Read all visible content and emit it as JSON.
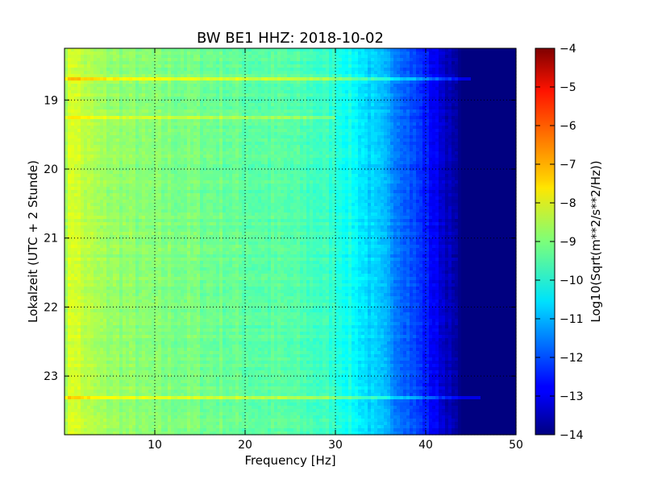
{
  "chart_data": {
    "type": "heatmap",
    "title": "BW BE1 HHZ: 2018-10-02",
    "xlabel": "Frequency [Hz]",
    "ylabel": "Lokalzeit (UTC + 2 Stunde)",
    "colorbar_label": "Log10(Sqrt(m**2/s**2/Hz))",
    "colormap": "jet",
    "grid": true,
    "xlim": [
      0,
      50
    ],
    "ylim": [
      18.25,
      23.85
    ],
    "y_inverted": true,
    "x_ticks": [
      10,
      20,
      30,
      40,
      50
    ],
    "x_tick_labels": [
      "10",
      "20",
      "30",
      "40",
      "50"
    ],
    "y_ticks": [
      19,
      20,
      21,
      22,
      23
    ],
    "y_tick_labels": [
      "19",
      "20",
      "21",
      "22",
      "23"
    ],
    "clim": [
      -14,
      -4
    ],
    "colorbar_ticks": [
      -4,
      -5,
      -6,
      -7,
      -8,
      -9,
      -10,
      -11,
      -12,
      -13,
      -14
    ],
    "colorbar_tick_labels": [
      "−4",
      "−5",
      "−6",
      "−7",
      "−8",
      "−9",
      "−10",
      "−11",
      "−12",
      "−13",
      "−14"
    ],
    "spectrum_profile": {
      "frequency_hz": [
        0,
        1,
        2,
        4,
        6,
        8,
        10,
        12,
        15,
        18,
        20,
        24,
        28,
        30,
        32,
        34,
        36,
        38,
        40,
        42,
        43,
        44,
        50
      ],
      "level": [
        -8.6,
        -8.0,
        -8.4,
        -8.7,
        -8.8,
        -8.9,
        -9.0,
        -9.0,
        -9.1,
        -9.2,
        -9.3,
        -9.4,
        -9.6,
        -9.8,
        -10.2,
        -10.7,
        -11.2,
        -11.8,
        -12.5,
        -13.2,
        -13.6,
        -14.0,
        -14.0
      ]
    },
    "bright_bands": [
      {
        "time": 18.7,
        "level_offset": 1.0,
        "max_frequency_hz": 45
      },
      {
        "time": 19.25,
        "level_offset": 0.8,
        "max_frequency_hz": 30
      },
      {
        "time": 23.3,
        "level_offset": 1.0,
        "max_frequency_hz": 46
      }
    ]
  }
}
